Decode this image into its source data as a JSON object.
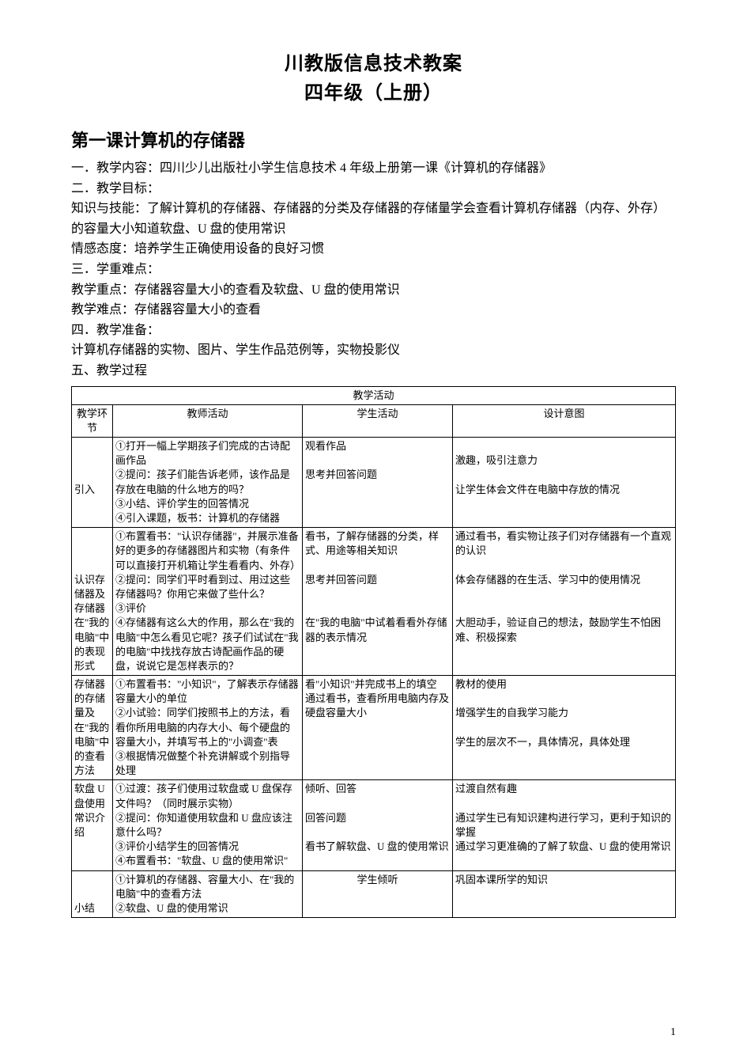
{
  "doc_title": "川教版信息技术教案",
  "doc_subtitle": "四年级（上册）",
  "lesson_heading": "第一课计算机的存储器",
  "section1_label": "一．教学内容：",
  "section1_text": "四川少儿出版社小学生信息技术 4 年级上册第一课《计算机的存储器》",
  "section2_label": "二．教学目标：",
  "goal_knowledge_label": "知识与技能：",
  "goal_knowledge_text": "了解计算机的存储器、存储器的分类及存储器的存储量学会查看计算机存储器（内存、外存）的容量大小知道软盘、U 盘的使用常识",
  "goal_attitude_label": "情感态度：",
  "goal_attitude_text": "培养学生正确使用设备的良好习惯",
  "section3_label": "三．学重难点：",
  "focus_label": "教学重点：",
  "focus_text": "存储器容量大小的查看及软盘、U 盘的使用常识",
  "difficulty_label": "教学难点：",
  "difficulty_text": "存储器容量大小的查看",
  "section4_label": "四．教学准备：",
  "prep_text": "计算机存储器的实物、图片、学生作品范例等，实物投影仪",
  "section5_label": "五、教学过程",
  "table_header_group": "教学活动",
  "col_stage": "教学环节",
  "col_teacher": "教师活动",
  "col_student": "学生活动",
  "col_intent": "设计意图",
  "r1_stage": "引入",
  "r1_t1": "①打开一幅上学期孩子们完成的古诗配画作品",
  "r1_t2": "②提问：孩子们能告诉老师，该作品是存放在电脑的什么地方的吗？",
  "r1_t3": "③小结、评价学生的回答情况",
  "r1_t4": "④引入课题，板书：计算机的存储器",
  "r1_s1": "观看作品",
  "r1_s2": "思考并回答问题",
  "r1_i1": "激趣，吸引注意力",
  "r1_i2": "让学生体会文件在电脑中存放的情况",
  "r2_stage": "认识存储器及存储器在\"我的电脑\"中的表现形式",
  "r2_t1": "①布置看书：\"认识存储器\"，并展示准备好的更多的存储器图片和实物（有条件可以直接打开机箱让学生看看内、外存）",
  "r2_t2": "②提问：同学们平时看到过、用过这些存储器吗？你用它来做了些什么？",
  "r2_t3": "③评价",
  "r2_t4": "④存储器有这么大的作用，那么在\"我的电脑\"中怎么看见它呢？孩子们试试在\"我的电脑\"中找找存放古诗配画作品的硬盘，说说它是怎样表示的？",
  "r2_s1": "看书，了解存储器的分类，样式、用途等相关知识",
  "r2_s2": "思考并回答问题",
  "r2_s3": "在\"我的电脑\"中试着看看外存储器的表示情况",
  "r2_i1": "通过看书，看实物让孩子们对存储器有一个直观的认识",
  "r2_i2": "体会存储器的在生活、学习中的使用情况",
  "r2_i3": "大胆动手，验证自己的想法，鼓励学生不怕困难、积极探索",
  "r3_stage": "存储器的存储量及在\"我的电脑\"中的查看方法",
  "r3_t1": "①布置看书：\"小知识\"，了解表示存储器容量大小的单位",
  "r3_t2": "②小试验：同学们按照书上的方法，看看你所用电脑的内存大小、每个硬盘的容量大小，并填写书上的\"小调查\"表",
  "r3_t3": "③根据情况做整个补充讲解或个别指导处理",
  "r3_s1": "看\"小知识\"并完成书上的填空",
  "r3_s2": "通过看书，查看所用电脑内存及硬盘容量大小",
  "r3_i1": "教材的使用",
  "r3_i2": "增强学生的自我学习能力",
  "r3_i3": "学生的层次不一，具体情况，具体处理",
  "r4_stage": "软盘 U 盘使用常识介绍",
  "r4_t1": "①过渡：孩子们使用过软盘或 U 盘保存文件吗？（同时展示实物）",
  "r4_t2": "②提问：你知道使用软盘和 U 盘应该注意什么吗？",
  "r4_t3": "③评价小结学生的回答情况",
  "r4_t4": "④布置看书：\"软盘、U 盘的使用常识\"",
  "r4_s1": "倾听、回答",
  "r4_s2": "回答问题",
  "r4_s3": "看书了解软盘、U 盘的使用常识",
  "r4_i1": "过渡自然有趣",
  "r4_i2": "通过学生已有知识建构进行学习，更利于知识的掌握",
  "r4_i3": "通过学习更准确的了解了软盘、U 盘的使用常识",
  "r5_stage": "小结",
  "r5_t1": "①计算机的存储器、容量大小、在\"我的电脑\"中的查看方法",
  "r5_t2": "②软盘、U 盘的使用常识",
  "r5_s1": "学生倾听",
  "r5_i1": "巩固本课所学的知识",
  "page_number": "1"
}
